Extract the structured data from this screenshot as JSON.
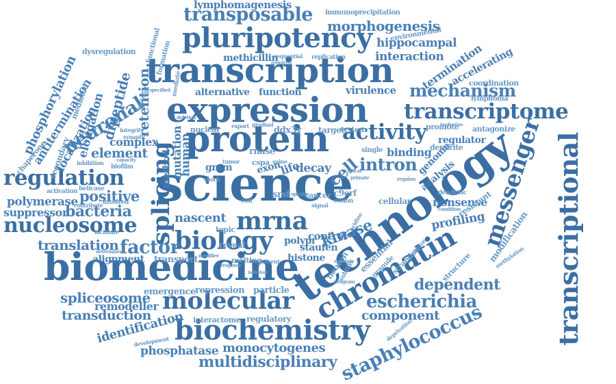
{
  "word_cloud": {
    "colors": {
      "primary": "#4a80b5",
      "dark": "#3b6fa3",
      "light": "#6b9ac6"
    },
    "words": [
      "lymphomagenesis",
      "immunoprecipitation",
      "transposable",
      "morphogenesis",
      "pluripotency",
      "environmental",
      "transcription",
      "hippocampal",
      "methicillin",
      "interaction",
      "termination",
      "accelerating",
      "phosphorylation",
      "antitermination",
      "dysregulation",
      "expression",
      "transcriptome",
      "mechanism",
      "coordination",
      "neuronal",
      "retention",
      "dipeptide",
      "protein",
      "activity",
      "regulation",
      "localization",
      "elongation",
      "intron",
      "splicing",
      "science",
      "technology",
      "messenger",
      "transcriptional",
      "nucleosome",
      "polymerase",
      "suppressor",
      "bacteria",
      "positive",
      "biology",
      "mrna",
      "kinase",
      "nonsense",
      "profiling",
      "translation",
      "factor",
      "chromatin",
      "modification",
      "biomedicine",
      "alignment",
      "transport",
      "staufen",
      "histone",
      "dependent",
      "spliceosome",
      "molecular",
      "escherichia",
      "remodeller",
      "transduction",
      "component",
      "identification",
      "biochemistry",
      "staphylococcus",
      "phosphatase",
      "monocytogenes",
      "multidisciplinary",
      "human",
      "mutation",
      "method",
      "cell",
      "cancer",
      "nascent",
      "rnase",
      "gram",
      "decay",
      "binding",
      "genome",
      "analysis",
      "dendrite",
      "regulator",
      "antagonize",
      "element",
      "complex",
      "nuclear",
      "target",
      "system",
      "alternative",
      "function",
      "virulence",
      "promote",
      "emergence",
      "repression",
      "particle",
      "interactome",
      "regulatory",
      "development",
      "essential",
      "granule",
      "stranded",
      "structure",
      "cellular",
      "resistant",
      "condition",
      "dendritic",
      "polypr",
      "reveal",
      "control",
      "topic",
      "melting",
      "present",
      "response",
      "modifier",
      "individual",
      "regulate",
      "neuron",
      "subtilis",
      "evolution",
      "deprivation",
      "methylation",
      "lymphoma",
      "chaperone",
      "secondary",
      "mediated",
      "methyltransferase",
      "activation",
      "helicase",
      "involved",
      "contribute",
      "facilitate",
      "determined",
      "biofilm",
      "inhibition",
      "capacity",
      "synaptic",
      "integrity",
      "formation",
      "mediate",
      "functional",
      "phosphorylated",
      "specified",
      "bacterial",
      "replication",
      "sequential",
      "required",
      "fluorouracil",
      "deletion",
      "proteomics",
      "gradual",
      "export",
      "tumor",
      "spine",
      "shock",
      "single",
      "critical",
      "primate",
      "regulon",
      "codon",
      "specific",
      "signal",
      "uridine",
      "program",
      "embryonic",
      "ddx3y",
      "srsf",
      "exon",
      "life",
      "cspa",
      "coli",
      "c9orf",
      "implication",
      "proteolysis"
    ]
  }
}
